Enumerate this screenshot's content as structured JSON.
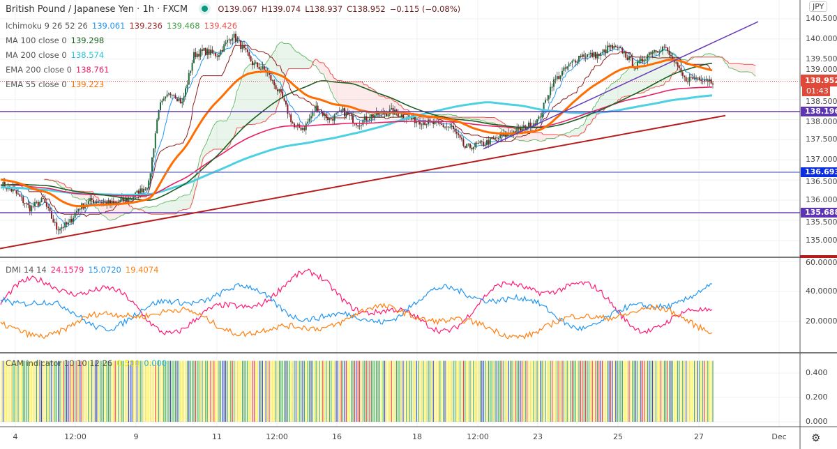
{
  "header": {
    "symbol": "British Pound / Japanese Yen · 1h · FXCM",
    "open": "O139.067",
    "high": "H139.074",
    "low": "L138.937",
    "close": "C138.952",
    "change": "−0.115 (−0.08%)"
  },
  "legends": {
    "ichimoku": {
      "label": "Ichimoku 9 26 52 26",
      "values": [
        "139.061",
        "139.236",
        "139.468",
        "139.426"
      ]
    },
    "ma100": {
      "label": "MA 100 close 0",
      "value": "139.298"
    },
    "ma200": {
      "label": "MA 200 close 0",
      "value": "138.574"
    },
    "ema200": {
      "label": "EMA 200 close 0",
      "value": "138.761"
    },
    "ema55": {
      "label": "EMA 55 close 0",
      "value": "139.223"
    },
    "dmi": {
      "label": "DMI 14 14",
      "values": [
        "24.1579",
        "15.0720",
        "19.4074"
      ]
    },
    "cam": {
      "label": "CAM indicator 10 10 12 26",
      "values": [
        "0.500",
        "0.000"
      ]
    }
  },
  "price_axis": {
    "currency": "JPY",
    "ticks": [
      "140.500",
      "140.000",
      "139.500",
      "139.000",
      "138.500",
      "138.000",
      "137.500",
      "137.000",
      "136.500",
      "136.000",
      "135.500",
      "135.000"
    ],
    "last_price": "138.952",
    "countdown": "01:43",
    "levels": [
      "138.196",
      "136.693",
      "135.688"
    ]
  },
  "dmi_axis": {
    "ticks": [
      "60.0000",
      "40.0000",
      "20.0000"
    ]
  },
  "cam_axis": {
    "ticks": [
      "0.400",
      "0.200",
      "0.000"
    ]
  },
  "time_axis": {
    "ticks": [
      "4",
      "12:00",
      "9",
      "11",
      "12:00",
      "16",
      "18",
      "12:00",
      "23",
      "25",
      "27",
      "Dec"
    ]
  },
  "colors": {
    "up": "#26a69a",
    "down": "#c62828",
    "ema55": "#ff6d00",
    "ema200": "#e91e63",
    "ma100": "#1b5e20",
    "ma200": "#4dd0e1",
    "dmi_plus": "#ff1a75",
    "dmi_minus": "#2196f3",
    "adx": "#ff7f0e",
    "trend_red": "#b71c1c",
    "trend_purple": "#673ab7"
  },
  "chart_data": {
    "type": "candlestick",
    "close_waypoints": [
      [
        0,
        136.4
      ],
      [
        8,
        136.2
      ],
      [
        17,
        135.8
      ],
      [
        25,
        136.0
      ],
      [
        33,
        135.3
      ],
      [
        40,
        135.4
      ],
      [
        46,
        135.8
      ],
      [
        54,
        136.0
      ],
      [
        67,
        135.9
      ],
      [
        79,
        136.1
      ],
      [
        88,
        136.4
      ],
      [
        94,
        138.3
      ],
      [
        102,
        138.7
      ],
      [
        108,
        138.4
      ],
      [
        115,
        139.6
      ],
      [
        121,
        139.7
      ],
      [
        129,
        139.6
      ],
      [
        138,
        140.1
      ],
      [
        142,
        139.9
      ],
      [
        150,
        139.4
      ],
      [
        158,
        139.2
      ],
      [
        167,
        138.6
      ],
      [
        175,
        137.8
      ],
      [
        181,
        137.8
      ],
      [
        188,
        138.3
      ],
      [
        196,
        138.0
      ],
      [
        204,
        138.2
      ],
      [
        213,
        137.9
      ],
      [
        221,
        138.1
      ],
      [
        233,
        138.2
      ],
      [
        246,
        138.0
      ],
      [
        258,
        137.9
      ],
      [
        269,
        137.8
      ],
      [
        277,
        137.3
      ],
      [
        288,
        137.4
      ],
      [
        300,
        137.6
      ],
      [
        313,
        137.8
      ],
      [
        321,
        138.0
      ],
      [
        329,
        138.9
      ],
      [
        338,
        139.3
      ],
      [
        346,
        139.6
      ],
      [
        358,
        139.6
      ],
      [
        363,
        139.8
      ],
      [
        371,
        139.7
      ],
      [
        379,
        139.3
      ],
      [
        388,
        139.7
      ],
      [
        396,
        139.8
      ],
      [
        402,
        139.4
      ],
      [
        408,
        139.0
      ],
      [
        417,
        139.05
      ],
      [
        425,
        138.95
      ]
    ],
    "horizontal_levels": [
      138.196,
      136.693,
      135.688
    ],
    "trendlines": [
      {
        "from": 134.8,
        "to": 138.1
      },
      {
        "from": 137.27,
        "to": 140.43
      }
    ],
    "ylim": [
      134.6,
      140.6
    ]
  }
}
